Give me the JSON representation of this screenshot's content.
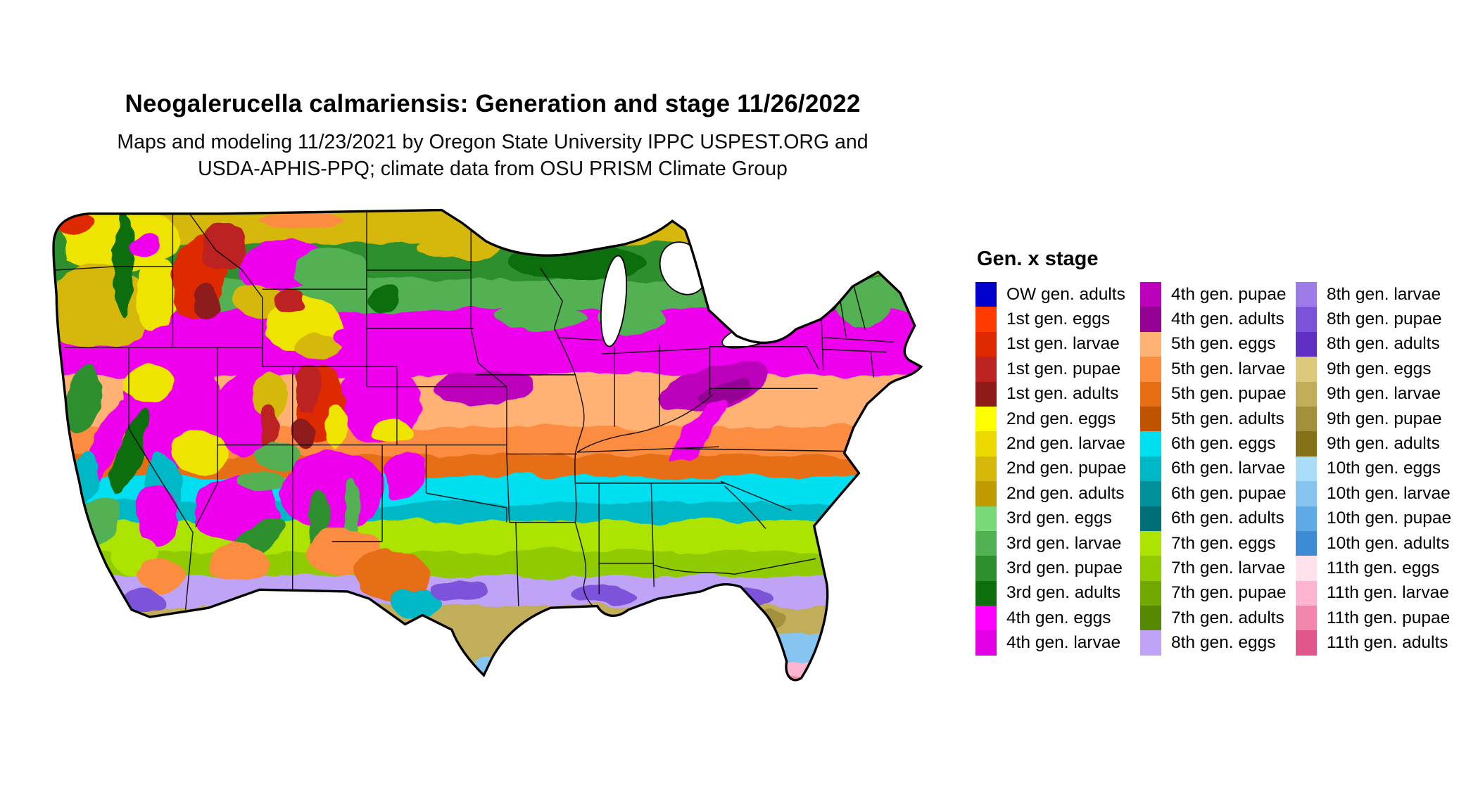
{
  "header": {
    "title": "Neogalerucella calmariensis: Generation and stage 11/26/2022",
    "subtitle_line1": "Maps and modeling 11/23/2021 by Oregon State University IPPC USPEST.ORG and",
    "subtitle_line2": "USDA-APHIS-PPQ; climate data from OSU PRISM Climate Group"
  },
  "legend": {
    "title": "Gen. x stage",
    "columns": [
      {
        "entries": [
          {
            "label": "OW gen. adults",
            "color": "#0000CD"
          },
          {
            "label": "1st gen. eggs",
            "color": "#FF3B00"
          },
          {
            "label": "1st gen. larvae",
            "color": "#DE2900"
          },
          {
            "label": "1st gen. pupae",
            "color": "#BC2424"
          },
          {
            "label": "1st gen. adults",
            "color": "#8F1A1A"
          },
          {
            "label": "2nd gen. eggs",
            "color": "#FFFF00"
          },
          {
            "label": "2nd gen. larvae",
            "color": "#ECD900"
          },
          {
            "label": "2nd gen. pupae",
            "color": "#D6B80A"
          },
          {
            "label": "2nd gen. adults",
            "color": "#BF9B00"
          },
          {
            "label": "3rd gen. eggs",
            "color": "#79D979"
          },
          {
            "label": "3rd gen. larvae",
            "color": "#52B152"
          },
          {
            "label": "3rd gen. pupae",
            "color": "#2E8F2E"
          },
          {
            "label": "3rd gen. adults",
            "color": "#0D6E0D"
          },
          {
            "label": "4th gen. eggs",
            "color": "#FF00FF"
          },
          {
            "label": "4th gen. larvae",
            "color": "#E300E3"
          }
        ]
      },
      {
        "entries": [
          {
            "label": "4th gen. pupae",
            "color": "#BC00BC"
          },
          {
            "label": "4th gen. adults",
            "color": "#950095"
          },
          {
            "label": "5th gen. eggs",
            "color": "#FFB273"
          },
          {
            "label": "5th gen. larvae",
            "color": "#FC8D3F"
          },
          {
            "label": "5th gen. pupae",
            "color": "#E56E12"
          },
          {
            "label": "5th gen. adults",
            "color": "#C05300"
          },
          {
            "label": "6th gen. eggs",
            "color": "#00DFF0"
          },
          {
            "label": "6th gen. larvae",
            "color": "#00B7C6"
          },
          {
            "label": "6th gen. pupae",
            "color": "#00919D"
          },
          {
            "label": "6th gen. adults",
            "color": "#006E77"
          },
          {
            "label": "7th gen. eggs",
            "color": "#ACE300"
          },
          {
            "label": "7th gen. larvae",
            "color": "#8FCB00"
          },
          {
            "label": "7th gen. pupae",
            "color": "#71A900"
          },
          {
            "label": "7th gen. adults",
            "color": "#568700"
          },
          {
            "label": "8th gen. eggs",
            "color": "#BFA3F7"
          }
        ]
      },
      {
        "entries": [
          {
            "label": "8th gen. larvae",
            "color": "#9D7BE8"
          },
          {
            "label": "8th gen. pupae",
            "color": "#7C52D9"
          },
          {
            "label": "8th gen. adults",
            "color": "#6030C4"
          },
          {
            "label": "9th gen. eggs",
            "color": "#DDC97C"
          },
          {
            "label": "9th gen. larvae",
            "color": "#C1AD5A"
          },
          {
            "label": "9th gen. pupae",
            "color": "#A3903A"
          },
          {
            "label": "9th gen. adults",
            "color": "#857218"
          },
          {
            "label": "10th gen. eggs",
            "color": "#A9DDF8"
          },
          {
            "label": "10th gen. larvae",
            "color": "#85C5F0"
          },
          {
            "label": "10th gen. pupae",
            "color": "#5FA9E5"
          },
          {
            "label": "10th gen. adults",
            "color": "#3D8AD5"
          },
          {
            "label": "11th gen. eggs",
            "color": "#FFE1EC"
          },
          {
            "label": "11th gen. larvae",
            "color": "#FFB5D1"
          },
          {
            "label": "11th gen. pupae",
            "color": "#F286AE"
          },
          {
            "label": "11th gen. adults",
            "color": "#E0578B"
          }
        ]
      }
    ]
  }
}
